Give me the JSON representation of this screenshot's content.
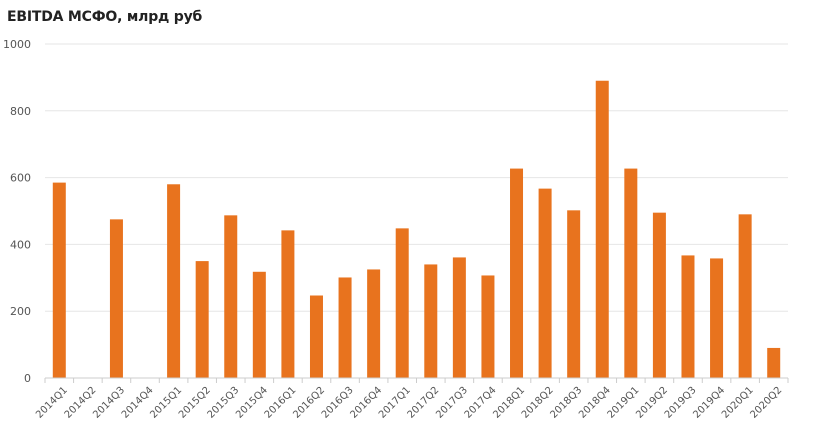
{
  "colors": {
    "bar": "#e8731e",
    "grid": "#e6e6e6",
    "axis": "#cccccc"
  },
  "chart_data": {
    "type": "bar",
    "title": "EBITDA МСФО, млрд руб",
    "xlabel": "",
    "ylabel": "",
    "ylim": [
      0,
      1000
    ],
    "yticks": [
      0,
      200,
      400,
      600,
      800,
      1000
    ],
    "grid": true,
    "categories": [
      "2014Q1",
      "2014Q2",
      "2014Q3",
      "2014Q4",
      "2015Q1",
      "2015Q2",
      "2015Q3",
      "2015Q4",
      "2016Q1",
      "2016Q2",
      "2016Q3",
      "2016Q4",
      "2017Q1",
      "2017Q2",
      "2017Q3",
      "2017Q4",
      "2018Q1",
      "2018Q2",
      "2018Q3",
      "2018Q4",
      "2019Q1",
      "2019Q2",
      "2019Q3",
      "2019Q4",
      "2020Q1",
      "2020Q2"
    ],
    "values": [
      585,
      null,
      475,
      null,
      580,
      350,
      487,
      318,
      442,
      247,
      301,
      325,
      448,
      340,
      361,
      307,
      627,
      567,
      502,
      890,
      627,
      495,
      367,
      358,
      490,
      90
    ]
  }
}
